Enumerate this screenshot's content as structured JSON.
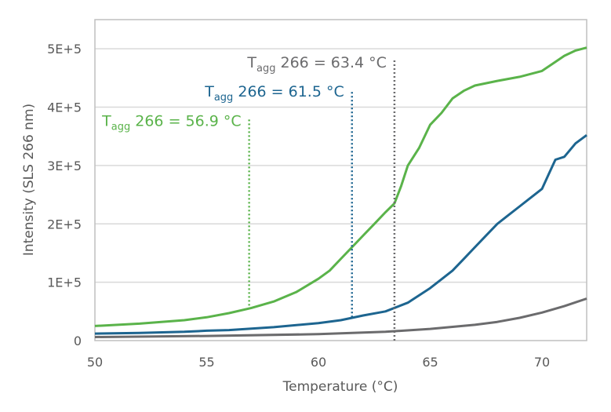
{
  "chart_data": {
    "type": "line",
    "xlabel": "Temperature (°C)",
    "ylabel": "Intensity (SLS 266 nm)",
    "xlim": [
      50,
      72
    ],
    "ylim": [
      0,
      550000
    ],
    "xticks": [
      50,
      55,
      60,
      65,
      70
    ],
    "xtick_labels": [
      "50",
      "55",
      "60",
      "65",
      "70"
    ],
    "yticks": [
      0,
      100000,
      200000,
      300000,
      400000,
      500000
    ],
    "ytick_labels": [
      "0",
      "1E+5",
      "2E+5",
      "3E+5",
      "4E+5",
      "5E+5"
    ],
    "grid": "horizontal",
    "series": [
      {
        "color": "#5ab34a",
        "x": [
          50,
          52,
          54,
          55,
          56,
          57,
          58,
          59,
          60,
          60.5,
          61,
          61.5,
          62,
          62.5,
          63,
          63.4,
          63.7,
          64,
          64.5,
          65,
          65.5,
          66,
          66.5,
          67,
          68,
          69,
          70,
          70.5,
          71,
          71.5,
          72
        ],
        "y": [
          25000,
          29000,
          35000,
          40000,
          47000,
          56000,
          67000,
          83000,
          106000,
          120000,
          140000,
          160000,
          180000,
          200000,
          220000,
          235000,
          265000,
          300000,
          330000,
          370000,
          390000,
          415000,
          428000,
          437000,
          445000,
          452000,
          462000,
          475000,
          488000,
          497000,
          502000
        ]
      },
      {
        "color": "#1d6590",
        "x": [
          50,
          52,
          54,
          55,
          56,
          58,
          60,
          61,
          61.5,
          62,
          63,
          64,
          65,
          65.5,
          66,
          66.5,
          67,
          67.5,
          68,
          68.5,
          69,
          69.5,
          70,
          70.3,
          70.6,
          71,
          71.5,
          72
        ],
        "y": [
          12000,
          13000,
          15000,
          17000,
          18000,
          23000,
          30000,
          35000,
          39000,
          43000,
          50000,
          65000,
          90000,
          105000,
          120000,
          140000,
          160000,
          180000,
          200000,
          215000,
          230000,
          245000,
          260000,
          285000,
          310000,
          315000,
          338000,
          352000
        ]
      },
      {
        "color": "#6b6b6d",
        "x": [
          50,
          55,
          60,
          63,
          65,
          67,
          68,
          69,
          70,
          71,
          72
        ],
        "y": [
          6000,
          8000,
          11000,
          15000,
          20000,
          27000,
          32000,
          39000,
          48000,
          59000,
          72000
        ]
      }
    ],
    "annotations": [
      {
        "label_main": "T",
        "label_sub": "agg",
        "label_rest": " 266 = 56.9 °C",
        "x": 56.9,
        "y_from": 60000,
        "y_to": 380000,
        "color": "#5ab34a"
      },
      {
        "label_main": "T",
        "label_sub": "agg",
        "label_rest": " 266 = 61.5 °C",
        "x": 61.5,
        "y_from": 40000,
        "y_to": 430000,
        "color": "#1d6590"
      },
      {
        "label_main": "T",
        "label_sub": "agg",
        "label_rest": " 266 = 63.4 °C",
        "x": 63.4,
        "y_from": 0,
        "y_to": 480000,
        "color": "#6b6b6d"
      }
    ]
  }
}
